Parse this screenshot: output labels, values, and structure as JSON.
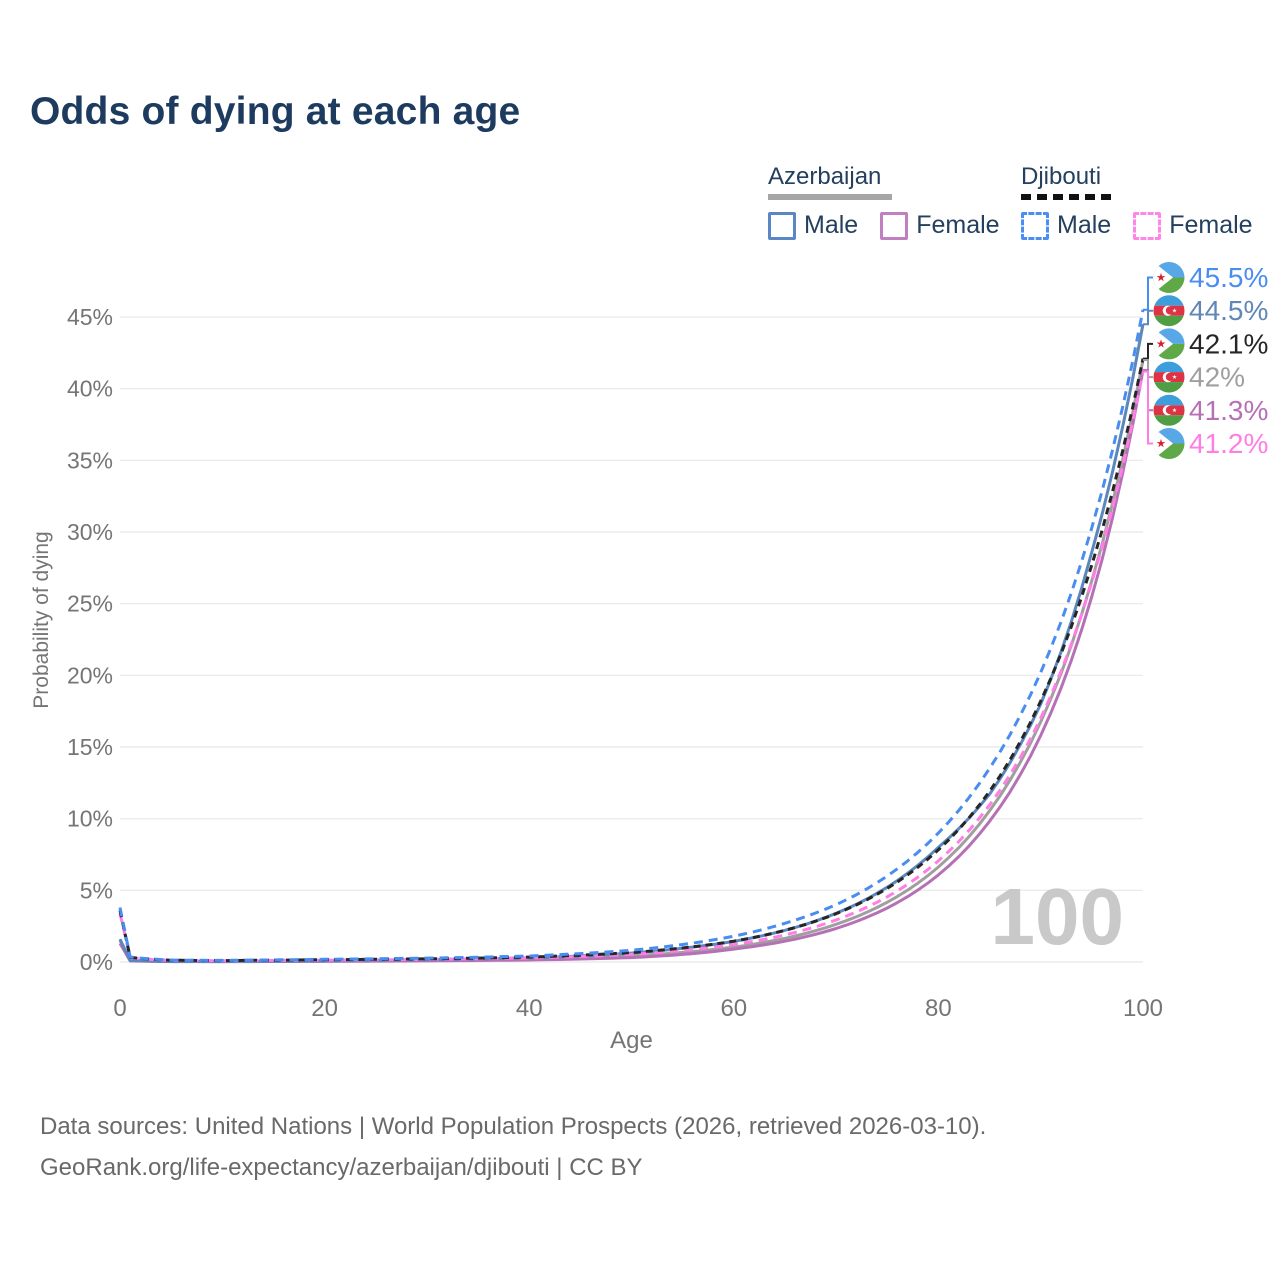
{
  "title": "Odds of dying at each age",
  "legend": {
    "azerbaijan": {
      "name": "Azerbaijan",
      "male_label": "Male",
      "female_label": "Female"
    },
    "djibouti": {
      "name": "Djibouti",
      "male_label": "Male",
      "female_label": "Female"
    }
  },
  "footer": {
    "line1": "Data sources: United Nations | World Population Prospects (2026, retrieved 2026-03-10).",
    "line2": "GeoRank.org/life-expectancy/azerbaijan/djibouti | CC BY"
  },
  "chart_data": {
    "type": "line",
    "title": "Odds of dying at each age",
    "xlabel": "Age",
    "ylabel": "Probability of dying",
    "xlim": [
      0,
      100
    ],
    "ylim_pct": [
      0,
      47
    ],
    "grid": "horizontal",
    "watermark": "100",
    "xticks": [
      0,
      20,
      40,
      60,
      80,
      100
    ],
    "yticks": [
      {
        "v": 0,
        "label": "0%"
      },
      {
        "v": 5,
        "label": "5%"
      },
      {
        "v": 10,
        "label": "10%"
      },
      {
        "v": 15,
        "label": "15%"
      },
      {
        "v": 20,
        "label": "20%"
      },
      {
        "v": 25,
        "label": "25%"
      },
      {
        "v": 30,
        "label": "30%"
      },
      {
        "v": 35,
        "label": "35%"
      },
      {
        "v": 40,
        "label": "40%"
      },
      {
        "v": 45,
        "label": "45%"
      }
    ],
    "series": [
      {
        "id": "azerbaijan-all",
        "name": "Azerbaijan (both sexes)",
        "color": "#9f9f9f",
        "dash": false,
        "end_value_pct": 42,
        "points": [
          [
            0,
            1.5
          ],
          [
            1,
            0.09
          ],
          [
            5,
            0.035
          ],
          [
            10,
            0.03
          ],
          [
            20,
            0.06
          ],
          [
            30,
            0.11
          ],
          [
            40,
            0.2
          ],
          [
            50,
            0.43
          ],
          [
            55,
            0.67
          ],
          [
            60,
            1.04
          ],
          [
            65,
            1.65
          ],
          [
            70,
            2.63
          ],
          [
            75,
            4.17
          ],
          [
            80,
            6.63
          ],
          [
            85,
            10.54
          ],
          [
            90,
            16.75
          ],
          [
            95,
            26.6
          ],
          [
            100,
            42.0
          ]
        ]
      },
      {
        "id": "azerbaijan-female",
        "name": "Azerbaijan Female",
        "color": "#b671b6",
        "dash": false,
        "end_value_pct": 41.3,
        "points": [
          [
            0,
            1.3
          ],
          [
            1,
            0.08
          ],
          [
            5,
            0.03
          ],
          [
            10,
            0.025
          ],
          [
            20,
            0.045
          ],
          [
            30,
            0.08
          ],
          [
            40,
            0.14
          ],
          [
            50,
            0.31
          ],
          [
            55,
            0.53
          ],
          [
            60,
            0.9
          ],
          [
            65,
            1.45
          ],
          [
            70,
            2.34
          ],
          [
            75,
            3.77
          ],
          [
            80,
            6.08
          ],
          [
            85,
            9.81
          ],
          [
            90,
            15.8
          ],
          [
            95,
            25.5
          ],
          [
            100,
            41.3
          ]
        ]
      },
      {
        "id": "azerbaijan-male",
        "name": "Azerbaijan Male",
        "color": "#5b87bd",
        "dash": false,
        "end_value_pct": 44.5,
        "points": [
          [
            0,
            1.6
          ],
          [
            1,
            0.1
          ],
          [
            5,
            0.045
          ],
          [
            10,
            0.04
          ],
          [
            20,
            0.09
          ],
          [
            30,
            0.16
          ],
          [
            40,
            0.29
          ],
          [
            50,
            0.62
          ],
          [
            55,
            0.96
          ],
          [
            60,
            1.44
          ],
          [
            65,
            2.21
          ],
          [
            70,
            3.4
          ],
          [
            75,
            5.22
          ],
          [
            80,
            8.0
          ],
          [
            85,
            11.7
          ],
          [
            90,
            18.0
          ],
          [
            95,
            28.6
          ],
          [
            100,
            44.5
          ]
        ]
      },
      {
        "id": "djibouti-female",
        "name": "Djibouti Female",
        "color": "#ff7de5",
        "dash": true,
        "end_value_pct": 41.2,
        "points": [
          [
            0,
            3.4
          ],
          [
            1,
            0.3
          ],
          [
            5,
            0.11
          ],
          [
            10,
            0.09
          ],
          [
            20,
            0.13
          ],
          [
            30,
            0.18
          ],
          [
            40,
            0.28
          ],
          [
            50,
            0.53
          ],
          [
            55,
            0.8
          ],
          [
            60,
            1.22
          ],
          [
            65,
            1.89
          ],
          [
            70,
            2.93
          ],
          [
            75,
            4.55
          ],
          [
            80,
            7.06
          ],
          [
            85,
            10.95
          ],
          [
            90,
            17.0
          ],
          [
            95,
            26.5
          ],
          [
            100,
            41.2
          ]
        ]
      },
      {
        "id": "djibouti-all",
        "name": "Djibouti (both sexes)",
        "color": "#262626",
        "dash": true,
        "end_value_pct": 42.1,
        "points": [
          [
            0,
            3.6
          ],
          [
            1,
            0.32
          ],
          [
            5,
            0.12
          ],
          [
            10,
            0.1
          ],
          [
            20,
            0.16
          ],
          [
            30,
            0.22
          ],
          [
            40,
            0.34
          ],
          [
            50,
            0.66
          ],
          [
            55,
            0.98
          ],
          [
            60,
            1.45
          ],
          [
            65,
            2.21
          ],
          [
            70,
            3.37
          ],
          [
            75,
            5.14
          ],
          [
            80,
            7.83
          ],
          [
            85,
            11.9
          ],
          [
            90,
            18.2
          ],
          [
            95,
            27.7
          ],
          [
            100,
            42.1
          ]
        ]
      },
      {
        "id": "djibouti-male",
        "name": "Djibouti Male",
        "color": "#4a8df0",
        "dash": true,
        "end_value_pct": 45.5,
        "points": [
          [
            0,
            3.8
          ],
          [
            1,
            0.35
          ],
          [
            5,
            0.13
          ],
          [
            10,
            0.11
          ],
          [
            20,
            0.19
          ],
          [
            30,
            0.27
          ],
          [
            40,
            0.42
          ],
          [
            50,
            0.82
          ],
          [
            55,
            1.22
          ],
          [
            60,
            1.8
          ],
          [
            65,
            2.7
          ],
          [
            70,
            4.0
          ],
          [
            75,
            6.0
          ],
          [
            80,
            9.0
          ],
          [
            85,
            13.5
          ],
          [
            90,
            20.2
          ],
          [
            95,
            30.3
          ],
          [
            100,
            45.5
          ]
        ]
      }
    ],
    "end_labels": [
      {
        "series": "djibouti-male",
        "flag": "djibouti",
        "text": "45.5%",
        "color": "#4a8df0"
      },
      {
        "series": "azerbaijan-male",
        "flag": "azerbaijan",
        "text": "44.5%",
        "color": "#6186b8"
      },
      {
        "series": "djibouti-all",
        "flag": "djibouti",
        "text": "42.1%",
        "color": "#262626"
      },
      {
        "series": "azerbaijan-all",
        "flag": "azerbaijan",
        "text": "42%",
        "color": "#9f9f9f"
      },
      {
        "series": "azerbaijan-female",
        "flag": "azerbaijan",
        "text": "41.3%",
        "color": "#b671b6"
      },
      {
        "series": "djibouti-female",
        "flag": "djibouti",
        "text": "41.2%",
        "color": "#ff7de5"
      }
    ]
  }
}
